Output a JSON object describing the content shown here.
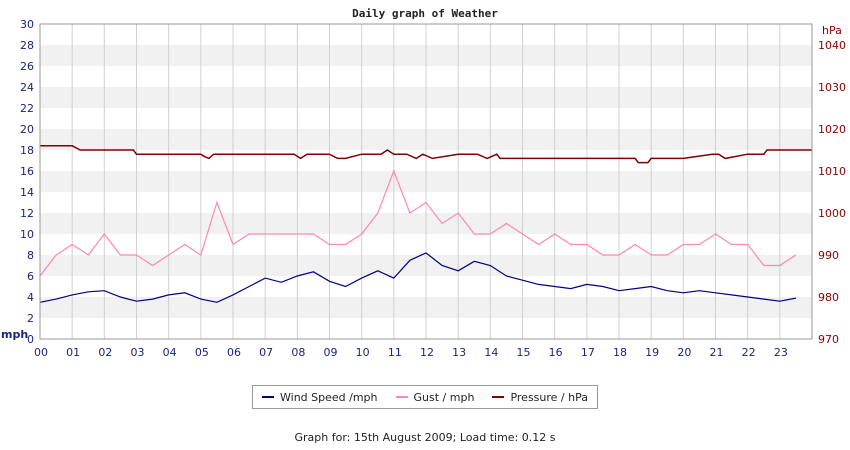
{
  "chart_data": {
    "type": "line",
    "title": "Daily graph of Weather",
    "x_tick_labels": [
      "00",
      "01",
      "02",
      "03",
      "04",
      "05",
      "06",
      "07",
      "08",
      "09",
      "10",
      "11",
      "12",
      "13",
      "14",
      "15",
      "16",
      "17",
      "18",
      "19",
      "20",
      "21",
      "22",
      "23"
    ],
    "xlim": [
      0,
      24
    ],
    "left_axis": {
      "label": "mph",
      "ylim": [
        0,
        30
      ],
      "ticks": [
        0,
        2,
        4,
        6,
        8,
        10,
        12,
        14,
        16,
        18,
        20,
        22,
        24,
        26,
        28,
        30
      ]
    },
    "right_axis": {
      "label": "hPa",
      "ylim": [
        970,
        1045
      ],
      "ticks": [
        970,
        980,
        990,
        1000,
        1010,
        1020,
        1030,
        1040
      ]
    },
    "grid": true,
    "legend_position": "bottom",
    "series": [
      {
        "name": "Wind Speed /mph",
        "axis": "left",
        "color": "#000080",
        "x": [
          0,
          0.5,
          1,
          1.5,
          2,
          2.5,
          3,
          3.5,
          4,
          4.5,
          5,
          5.5,
          6,
          6.5,
          7,
          7.5,
          8,
          8.5,
          9,
          9.5,
          10,
          10.5,
          11,
          11.5,
          12,
          12.5,
          13,
          13.5,
          14,
          14.5,
          15,
          15.5,
          16,
          16.5,
          17,
          17.5,
          18,
          18.5,
          19,
          19.5,
          20,
          20.5,
          21,
          21.5,
          22,
          22.5,
          23,
          23.5
        ],
        "values": [
          3.5,
          3.8,
          4.2,
          4.5,
          4.6,
          4.0,
          3.6,
          3.8,
          4.2,
          4.4,
          3.8,
          3.5,
          4.2,
          5.0,
          5.8,
          5.4,
          6.0,
          6.4,
          5.5,
          5.0,
          5.8,
          6.5,
          5.8,
          7.5,
          8.2,
          7.0,
          6.5,
          7.4,
          7.0,
          6.0,
          5.6,
          5.2,
          5.0,
          4.8,
          5.2,
          5.0,
          4.6,
          4.8,
          5.0,
          4.6,
          4.4,
          4.6,
          4.4,
          4.2,
          4.0,
          3.8,
          3.6,
          3.9
        ]
      },
      {
        "name": "Gust / mph",
        "axis": "left",
        "color": "#ff88aa",
        "x": [
          0,
          0.5,
          1,
          1.5,
          2,
          2.5,
          3,
          3.5,
          4,
          4.5,
          5,
          5.5,
          6,
          6.5,
          7,
          7.5,
          8,
          8.5,
          9,
          9.5,
          10,
          10.5,
          11,
          11.5,
          12,
          12.5,
          13,
          13.5,
          14,
          14.5,
          15,
          15.5,
          16,
          16.5,
          17,
          17.5,
          18,
          18.5,
          19,
          19.5,
          20,
          20.5,
          21,
          21.5,
          22,
          22.5,
          23,
          23.5
        ],
        "values": [
          6,
          8,
          9,
          8,
          10,
          8,
          8,
          7,
          8,
          9,
          8,
          13,
          9,
          10,
          10,
          10,
          10,
          10,
          9,
          9,
          10,
          12,
          16,
          12,
          13,
          11,
          12,
          10,
          10,
          11,
          10,
          9,
          10,
          9,
          9,
          8,
          8,
          9,
          8,
          8,
          9,
          9,
          10,
          9,
          9,
          7,
          7,
          8
        ]
      },
      {
        "name": "Pressure / hPa",
        "axis": "right",
        "color": "#800000",
        "x": [
          0,
          0.5,
          1,
          1.25,
          1.5,
          2,
          2.5,
          2.9,
          3,
          4,
          5,
          5.1,
          5.25,
          5.4,
          6,
          7,
          7.9,
          8.1,
          8.3,
          9,
          9.25,
          9.5,
          10,
          10.6,
          10.8,
          11,
          11.4,
          11.7,
          11.9,
          12.2,
          13,
          13.6,
          13.9,
          14.2,
          14.3,
          15,
          16,
          17,
          18,
          18.5,
          18.6,
          18.9,
          19,
          20,
          20.9,
          21.1,
          21.3,
          22,
          22.5,
          22.6,
          23,
          24
        ],
        "values": [
          1016,
          1016,
          1016,
          1015,
          1015,
          1015,
          1015,
          1015,
          1014,
          1014,
          1014,
          1013.5,
          1013,
          1014,
          1014,
          1014,
          1014,
          1013,
          1014,
          1014,
          1013,
          1013,
          1014,
          1014,
          1015,
          1014,
          1014,
          1013,
          1014,
          1013,
          1014,
          1014,
          1013,
          1014,
          1013,
          1013,
          1013,
          1013,
          1013,
          1013,
          1012,
          1012,
          1013,
          1013,
          1014,
          1014,
          1013,
          1014,
          1014,
          1015,
          1015,
          1015
        ]
      }
    ]
  },
  "legend": {
    "wind_label": "Wind Speed /mph",
    "gust_label": "Gust / mph",
    "pressure_label": "Pressure / hPa"
  },
  "footer": "Graph for: 15th August 2009; Load time: 0.12 s"
}
